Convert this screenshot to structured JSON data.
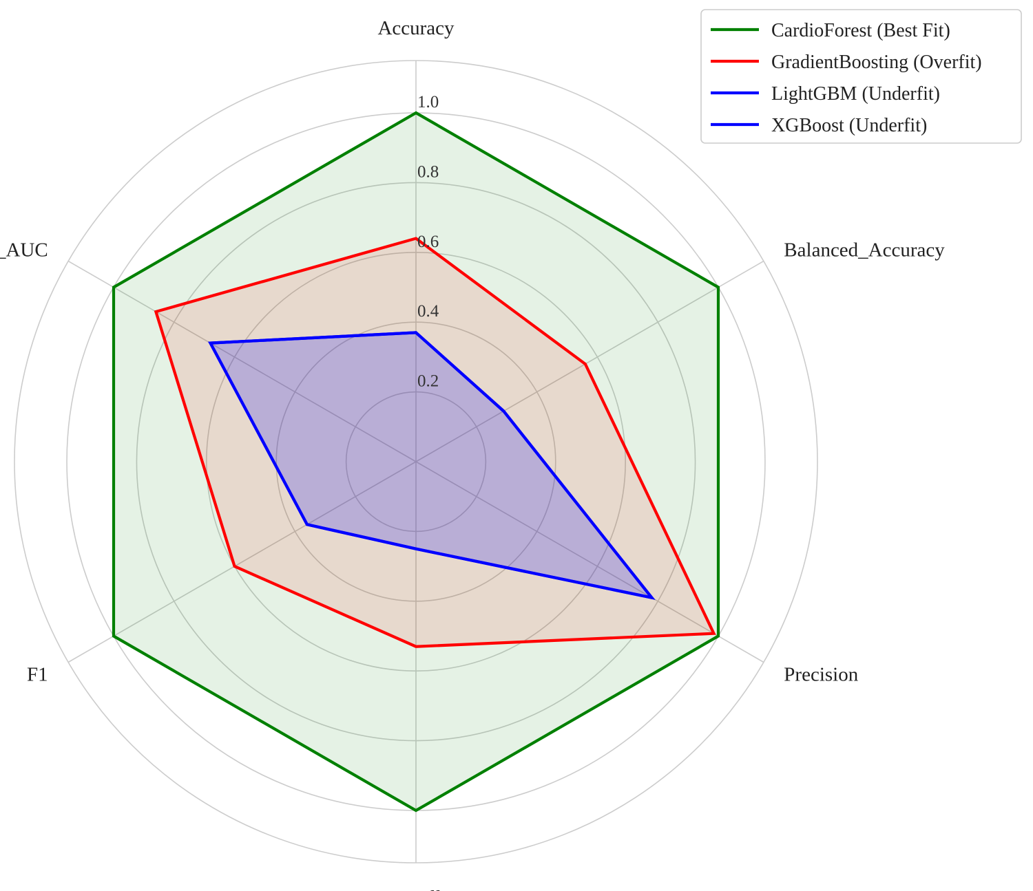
{
  "chart_data": {
    "type": "radar",
    "axes": [
      "Accuracy",
      "Balanced_Accuracy",
      "Precision",
      "Recall",
      "F1",
      "ROC_AUC"
    ],
    "rlim": [
      0,
      1.15
    ],
    "r_ticks": [
      0.2,
      0.4,
      0.6,
      0.8,
      1.0
    ],
    "r_tick_labels": [
      "0.2",
      "0.4",
      "0.6",
      "0.8",
      "1.0"
    ],
    "grid": true,
    "legend_position": "top-right",
    "series": [
      {
        "name": "CardioForest (Best Fit)",
        "color": "#008000",
        "fill_opacity": 0.1,
        "values": [
          1.0,
          1.0,
          1.0,
          1.0,
          1.0,
          1.0
        ]
      },
      {
        "name": "GradientBoosting (Overfit)",
        "color": "#ff0000",
        "fill_opacity": 0.1,
        "values": [
          0.64,
          0.56,
          0.985,
          0.53,
          0.6,
          0.86
        ]
      },
      {
        "name": "LightGBM (Underfit)",
        "color": "#0000ff",
        "fill_opacity": 0.1,
        "values": [
          0.37,
          0.29,
          0.78,
          0.25,
          0.36,
          0.68
        ]
      },
      {
        "name": "XGBoost (Underfit)",
        "color": "#0000ff",
        "fill_opacity": 0.1,
        "values": [
          0.37,
          0.29,
          0.78,
          0.25,
          0.36,
          0.68
        ]
      }
    ]
  }
}
